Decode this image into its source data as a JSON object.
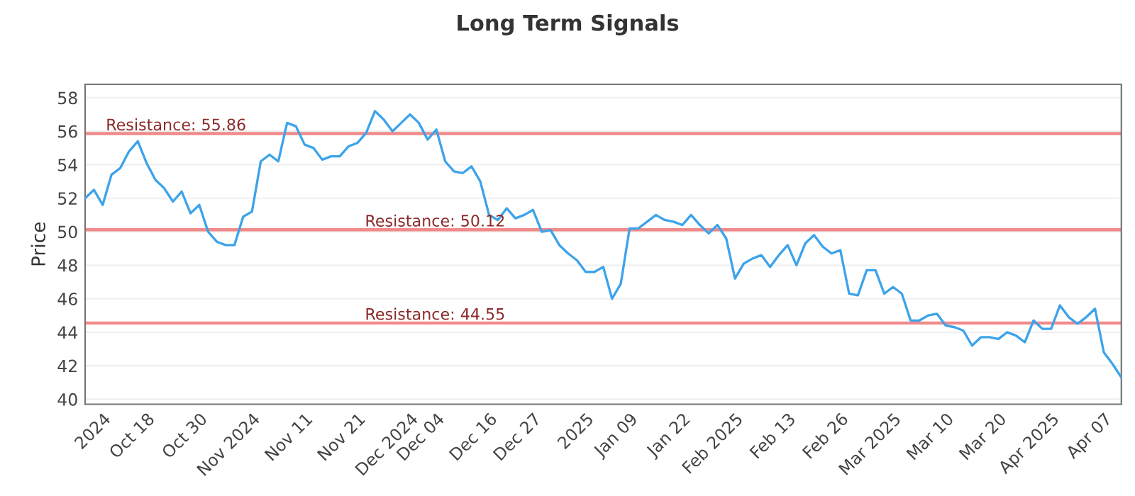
{
  "chart_data": {
    "type": "line",
    "title": "Long Term Signals",
    "ylabel": "Price",
    "categories": [
      null,
      null,
      "2024",
      null,
      null,
      null,
      null,
      "Oct 18",
      null,
      null,
      null,
      null,
      null,
      "Oct 30",
      null,
      null,
      null,
      null,
      null,
      "Nov 2024",
      null,
      null,
      null,
      null,
      null,
      "Nov 11",
      null,
      null,
      null,
      null,
      null,
      "Nov 21",
      null,
      null,
      null,
      null,
      null,
      "Dec 2024",
      null,
      null,
      "Dec 04",
      null,
      null,
      null,
      null,
      null,
      "Dec 16",
      null,
      null,
      null,
      null,
      "Dec 27",
      null,
      null,
      null,
      null,
      null,
      "2025",
      null,
      null,
      null,
      null,
      "Jan 09",
      null,
      null,
      null,
      null,
      null,
      "Jan 22",
      null,
      null,
      null,
      null,
      null,
      "Feb 2025",
      null,
      null,
      null,
      null,
      null,
      "Feb 13",
      null,
      null,
      null,
      null,
      null,
      "Feb 26",
      null,
      null,
      null,
      null,
      null,
      "Mar 2025",
      null,
      null,
      null,
      null,
      null,
      "Mar 10",
      null,
      null,
      null,
      null,
      null,
      "Mar 20",
      null,
      null,
      null,
      null,
      null,
      "Apr 2025",
      null,
      null,
      null,
      null,
      null,
      "Apr 07",
      null,
      null
    ],
    "series": [
      {
        "color": "#3da3ea",
        "values": [
          52.0,
          52.5,
          51.6,
          53.4,
          53.8,
          54.8,
          55.4,
          54.1,
          53.1,
          52.6,
          51.8,
          52.4,
          51.1,
          51.6,
          50.0,
          49.4,
          49.2,
          49.2,
          50.9,
          51.2,
          54.2,
          54.6,
          54.2,
          56.5,
          56.3,
          55.2,
          55.0,
          54.3,
          54.5,
          54.5,
          55.1,
          55.3,
          55.9,
          57.2,
          56.7,
          56.0,
          56.5,
          57.0,
          56.5,
          55.5,
          56.1,
          54.2,
          53.6,
          53.5,
          53.9,
          53.0,
          51.0,
          50.7,
          51.4,
          50.8,
          51.0,
          51.3,
          50.0,
          50.1,
          49.2,
          48.7,
          48.3,
          47.6,
          47.6,
          47.9,
          46.0,
          46.9,
          50.2,
          50.2,
          50.6,
          51.0,
          50.7,
          50.6,
          50.4,
          51.0,
          50.4,
          49.9,
          50.4,
          49.6,
          47.2,
          48.1,
          48.4,
          48.6,
          47.9,
          48.6,
          49.2,
          48.0,
          49.3,
          49.8,
          49.1,
          48.7,
          48.9,
          46.3,
          46.2,
          47.7,
          47.7,
          46.3,
          46.7,
          46.3,
          44.7,
          44.7,
          45.0,
          45.1,
          44.4,
          44.3,
          44.1,
          43.2,
          43.7,
          43.7,
          43.6,
          44.0,
          43.8,
          43.4,
          44.7,
          44.2,
          44.2,
          45.6,
          44.9,
          44.5,
          44.9,
          45.4,
          42.8,
          42.1,
          41.3
        ]
      }
    ],
    "ylim": [
      39.7,
      58.8
    ],
    "yticks": [
      40,
      42,
      44,
      46,
      48,
      50,
      52,
      54,
      56,
      58
    ],
    "ref_lines": [
      {
        "axis": "y",
        "value": 55.86,
        "label": "Resistance: 55.86",
        "color": "#f08a8a"
      },
      {
        "axis": "y",
        "value": 50.12,
        "label": "Resistance: 50.12",
        "color": "#f08a8a"
      },
      {
        "axis": "y",
        "value": 44.55,
        "label": "Resistance: 44.55",
        "color": "#f08a8a"
      }
    ],
    "grid": "y",
    "legend": false,
    "marker": "none",
    "line_style": "solid"
  }
}
